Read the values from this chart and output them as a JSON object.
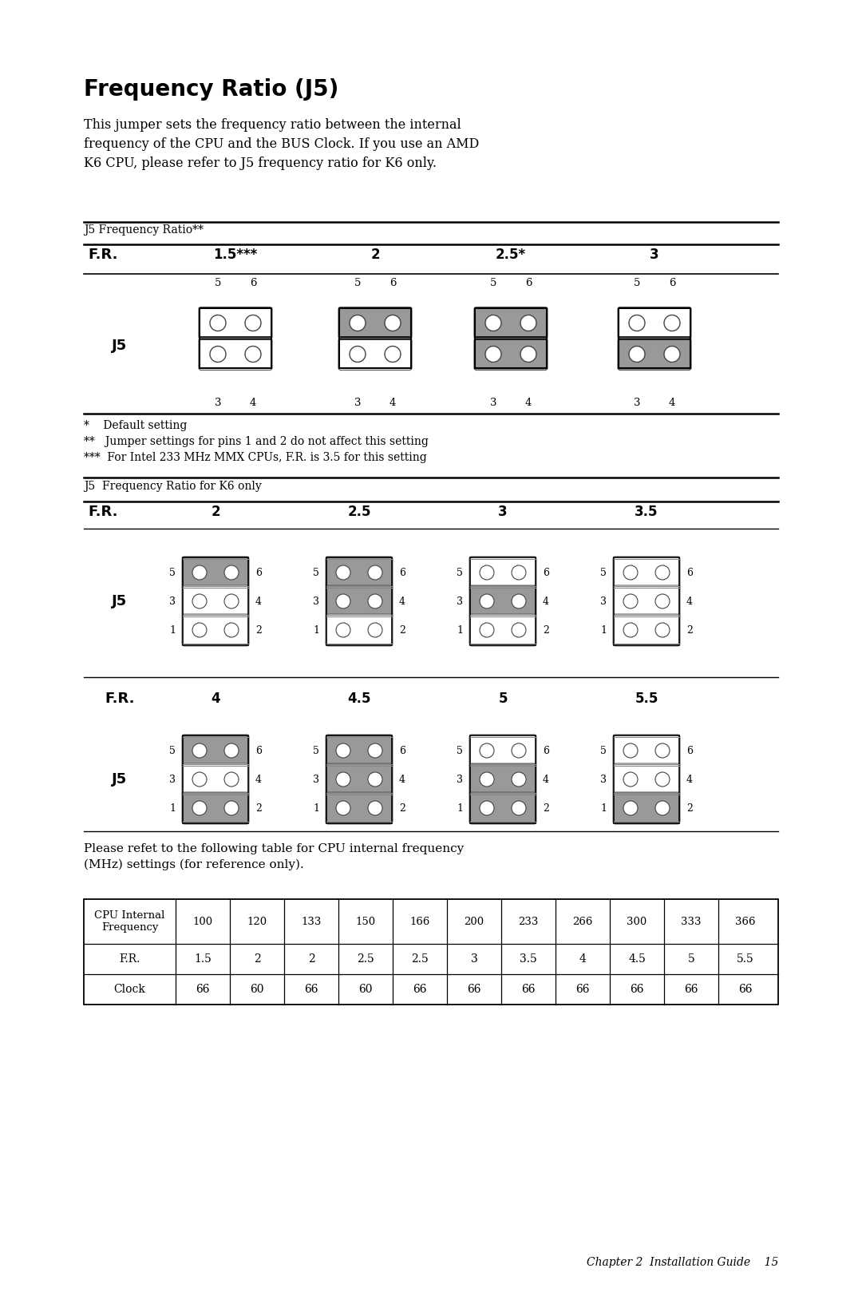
{
  "title": "Frequency Ratio (J5)",
  "intro_text": "This jumper sets the frequency ratio between the internal\nfrequency of the CPU and the BUS Clock. If you use an AMD\nK6 CPU, please refer to J5 frequency ratio for K6 only.",
  "table1_header": "J5 Frequency Ratio**",
  "table1_fr": [
    "F.R.",
    "1.5***",
    "2",
    "2.5*",
    "3"
  ],
  "table1_footnotes": [
    "*    Default setting",
    "**   Jumper settings for pins 1 and 2 do not affect this setting",
    "***  For Intel 233 MHz MMX CPUs, F.R. is 3.5 for this setting"
  ],
  "table2_header": "J5  Frequency Ratio for K6 only",
  "table2_fr_row1": [
    "F.R.",
    "2",
    "2.5",
    "3",
    "3.5"
  ],
  "table2_fr_row2": [
    "F.R.",
    "4",
    "4.5",
    "5",
    "5.5"
  ],
  "bottom_text": "Please refet to the following table for CPU internal frequency\n(MHz) settings (for reference only).",
  "cpu_table_header": [
    "CPU Internal\nFrequency",
    "100",
    "120",
    "133",
    "150",
    "166",
    "200",
    "233",
    "266",
    "300",
    "333",
    "366"
  ],
  "cpu_table_fr": [
    "F.R.",
    "1.5",
    "2",
    "2",
    "2.5",
    "2.5",
    "3",
    "3.5",
    "4",
    "4.5",
    "5",
    "5.5"
  ],
  "cpu_table_clock": [
    "Clock",
    "66",
    "60",
    "66",
    "60",
    "66",
    "66",
    "66",
    "66",
    "66",
    "66",
    "66"
  ],
  "footer": "Chapter 2  Installation Guide    15",
  "bg_color": "#ffffff",
  "gray_color": "#999999"
}
